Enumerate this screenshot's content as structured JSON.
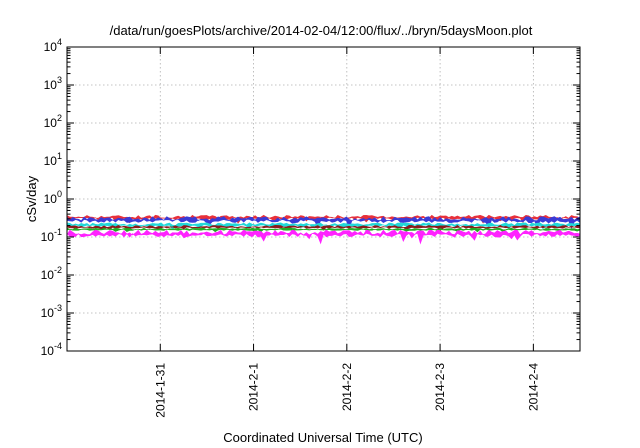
{
  "chart_data": {
    "type": "area",
    "title": "/data/run/goesPlots/archive/2014-02-04/12:00/flux/../bryn/5daysMoon.plot",
    "xlabel": "Coordinated Universal Time (UTC)",
    "ylabel": "cSv/day",
    "yscale": "log",
    "ylim": [
      0.0001,
      10000
    ],
    "y_ticks": [
      {
        "base": "10",
        "exp": "-4",
        "value": 0.0001
      },
      {
        "base": "10",
        "exp": "-3",
        "value": 0.001
      },
      {
        "base": "10",
        "exp": "-2",
        "value": 0.01
      },
      {
        "base": "10",
        "exp": "-1",
        "value": 0.1
      },
      {
        "base": "10",
        "exp": "0",
        "value": 1
      },
      {
        "base": "10",
        "exp": "1",
        "value": 10
      },
      {
        "base": "10",
        "exp": "2",
        "value": 100
      },
      {
        "base": "10",
        "exp": "3",
        "value": 1000
      },
      {
        "base": "10",
        "exp": "4",
        "value": 10000
      }
    ],
    "xlim": [
      "2014-01-30T00:00",
      "2014-02-04T12:00"
    ],
    "x_ticks": [
      "2014-1-31",
      "2014-2-1",
      "2014-2-2",
      "2014-2-3",
      "2014-2-4"
    ],
    "grid": true,
    "series": [
      {
        "color": "#e8303a",
        "level": 0.33,
        "spread": 0.22
      },
      {
        "color": "#3a3ad6",
        "level": 0.29,
        "spread": 0.3
      },
      {
        "color": "#22d8d8",
        "level": 0.21,
        "spread": 0.2
      },
      {
        "color": "#8b1a1a",
        "level": 0.185,
        "spread": 0.15
      },
      {
        "color": "#22aa22",
        "level": 0.16,
        "spread": 0.12
      },
      {
        "color": "#ff22ff",
        "level": 0.125,
        "spread": 0.35
      }
    ]
  }
}
